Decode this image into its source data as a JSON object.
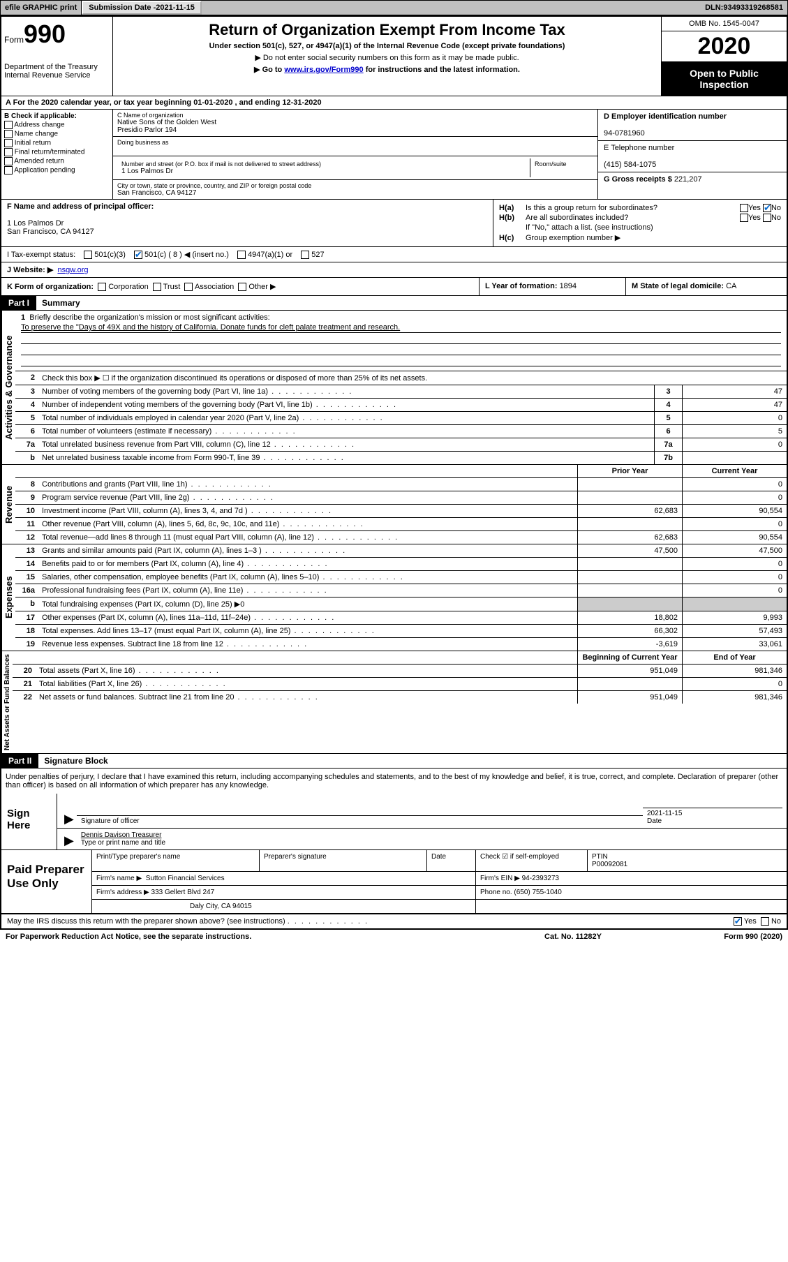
{
  "topbar": {
    "efile_label": "efile GRAPHIC print",
    "submission_label": "Submission Date - ",
    "submission_date": "2021-11-15",
    "dln_label": "DLN: ",
    "dln": "93493319268581"
  },
  "header": {
    "form_word": "Form",
    "form_number": "990",
    "dept": "Department of the Treasury\nInternal Revenue Service",
    "title": "Return of Organization Exempt From Income Tax",
    "subtitle": "Under section 501(c), 527, or 4947(a)(1) of the Internal Revenue Code (except private foundations)",
    "arrow1": "▶ Do not enter social security numbers on this form as it may be made public.",
    "arrow2_pre": "▶ Go to ",
    "arrow2_link": "www.irs.gov/Form990",
    "arrow2_post": " for instructions and the latest information.",
    "omb": "OMB No. 1545-0047",
    "year": "2020",
    "inspect": "Open to Public Inspection"
  },
  "row_a": "A For the 2020 calendar year, or tax year beginning 01-01-2020   , and ending 12-31-2020",
  "col_b": {
    "label": "B Check if applicable:",
    "opts": [
      "Address change",
      "Name change",
      "Initial return",
      "Final return/terminated",
      "Amended return",
      "Application pending"
    ]
  },
  "col_c": {
    "name_lbl": "C Name of organization",
    "name": "Native Sons of the Golden West",
    "name2": "Presidio Parlor 194",
    "dba_lbl": "Doing business as",
    "dba": "",
    "street_lbl": "Number and street (or P.O. box if mail is not delivered to street address)",
    "street": "1 Los Palmos Dr",
    "room_lbl": "Room/suite",
    "room": "",
    "city_lbl": "City or town, state or province, country, and ZIP or foreign postal code",
    "city": "San Francisco, CA  94127"
  },
  "col_d": {
    "ein_lbl": "D Employer identification number",
    "ein": "94-0781960",
    "phone_lbl": "E Telephone number",
    "phone": "(415) 584-1075",
    "gross_lbl": "G Gross receipts $ ",
    "gross": "221,207"
  },
  "f_block": {
    "label": "F Name and address of principal officer:",
    "addr1": "1 Los Palmos Dr",
    "addr2": "San Francisco, CA  94127"
  },
  "h_block": {
    "ha_lbl": "H(a)",
    "ha_txt": "Is this a group return for subordinates?",
    "ha_yes": "Yes",
    "ha_no": "No",
    "hb_lbl": "H(b)",
    "hb_txt": "Are all subordinates included?",
    "hb_note": "If \"No,\" attach a list. (see instructions)",
    "hc_lbl": "H(c)",
    "hc_txt": "Group exemption number ▶"
  },
  "i_row": {
    "label": "I  Tax-exempt status:",
    "opt1": "501(c)(3)",
    "opt2": "501(c) ( 8 ) ◀ (insert no.)",
    "opt3": "4947(a)(1) or",
    "opt4": "527"
  },
  "j_row": {
    "label": "J  Website: ▶",
    "value": "nsgw.org"
  },
  "k_row": {
    "label": "K Form of organization:",
    "opts": [
      "Corporation",
      "Trust",
      "Association",
      "Other ▶"
    ],
    "l_label": "L Year of formation: ",
    "l_val": "1894",
    "m_label": "M State of legal domicile: ",
    "m_val": "CA"
  },
  "part1": {
    "label": "Part I",
    "title": "Summary",
    "line1_num": "1",
    "line1_txt": "Briefly describe the organization's mission or most significant activities:",
    "mission": "To preserve the \"Days of 49X and the history of California. Donate funds for cleft palate treatment and research.",
    "line2_num": "2",
    "line2_txt": "Check this box ▶ ☐  if the organization discontinued its operations or disposed of more than 25% of its net assets.",
    "gov_label": "Activities & Governance",
    "rev_label": "Revenue",
    "exp_label": "Expenses",
    "net_label": "Net Assets or Fund Balances",
    "lines_gov": [
      {
        "n": "3",
        "d": "Number of voting members of the governing body (Part VI, line 1a)",
        "b": "3",
        "v": "47"
      },
      {
        "n": "4",
        "d": "Number of independent voting members of the governing body (Part VI, line 1b)",
        "b": "4",
        "v": "47"
      },
      {
        "n": "5",
        "d": "Total number of individuals employed in calendar year 2020 (Part V, line 2a)",
        "b": "5",
        "v": "0"
      },
      {
        "n": "6",
        "d": "Total number of volunteers (estimate if necessary)",
        "b": "6",
        "v": "5"
      },
      {
        "n": "7a",
        "d": "Total unrelated business revenue from Part VIII, column (C), line 12",
        "b": "7a",
        "v": "0"
      },
      {
        "n": "b",
        "d": "Net unrelated business taxable income from Form 990-T, line 39",
        "b": "7b",
        "v": ""
      }
    ],
    "hdr_prior": "Prior Year",
    "hdr_current": "Current Year",
    "lines_rev": [
      {
        "n": "8",
        "d": "Contributions and grants (Part VIII, line 1h)",
        "p": "",
        "c": "0"
      },
      {
        "n": "9",
        "d": "Program service revenue (Part VIII, line 2g)",
        "p": "",
        "c": "0"
      },
      {
        "n": "10",
        "d": "Investment income (Part VIII, column (A), lines 3, 4, and 7d )",
        "p": "62,683",
        "c": "90,554"
      },
      {
        "n": "11",
        "d": "Other revenue (Part VIII, column (A), lines 5, 6d, 8c, 9c, 10c, and 11e)",
        "p": "",
        "c": "0"
      },
      {
        "n": "12",
        "d": "Total revenue—add lines 8 through 11 (must equal Part VIII, column (A), line 12)",
        "p": "62,683",
        "c": "90,554"
      }
    ],
    "lines_exp": [
      {
        "n": "13",
        "d": "Grants and similar amounts paid (Part IX, column (A), lines 1–3 )",
        "p": "47,500",
        "c": "47,500"
      },
      {
        "n": "14",
        "d": "Benefits paid to or for members (Part IX, column (A), line 4)",
        "p": "",
        "c": "0"
      },
      {
        "n": "15",
        "d": "Salaries, other compensation, employee benefits (Part IX, column (A), lines 5–10)",
        "p": "",
        "c": "0"
      },
      {
        "n": "16a",
        "d": "Professional fundraising fees (Part IX, column (A), line 11e)",
        "p": "",
        "c": "0"
      },
      {
        "n": "b",
        "d": "Total fundraising expenses (Part IX, column (D), line 25) ▶0",
        "p": null,
        "c": null
      },
      {
        "n": "17",
        "d": "Other expenses (Part IX, column (A), lines 11a–11d, 11f–24e)",
        "p": "18,802",
        "c": "9,993"
      },
      {
        "n": "18",
        "d": "Total expenses. Add lines 13–17 (must equal Part IX, column (A), line 25)",
        "p": "66,302",
        "c": "57,493"
      },
      {
        "n": "19",
        "d": "Revenue less expenses. Subtract line 18 from line 12",
        "p": "-3,619",
        "c": "33,061"
      }
    ],
    "hdr_begin": "Beginning of Current Year",
    "hdr_end": "End of Year",
    "lines_net": [
      {
        "n": "20",
        "d": "Total assets (Part X, line 16)",
        "p": "951,049",
        "c": "981,346"
      },
      {
        "n": "21",
        "d": "Total liabilities (Part X, line 26)",
        "p": "",
        "c": "0"
      },
      {
        "n": "22",
        "d": "Net assets or fund balances. Subtract line 21 from line 20",
        "p": "951,049",
        "c": "981,346"
      }
    ]
  },
  "part2": {
    "label": "Part II",
    "title": "Signature Block",
    "penalty": "Under penalties of perjury, I declare that I have examined this return, including accompanying schedules and statements, and to the best of my knowledge and belief, it is true, correct, and complete. Declaration of preparer (other than officer) is based on all information of which preparer has any knowledge.",
    "sign_here": "Sign Here",
    "sig_officer_lbl": "Signature of officer",
    "sig_date_lbl": "Date",
    "sig_date": "2021-11-15",
    "sig_name": "Dennis Davison  Treasurer",
    "sig_name_lbl": "Type or print name and title",
    "paid_prep": "Paid Preparer Use Only",
    "prep_name_lbl": "Print/Type preparer's name",
    "prep_sig_lbl": "Preparer's signature",
    "prep_date_lbl": "Date",
    "prep_check_lbl": "Check ☑ if self-employed",
    "ptin_lbl": "PTIN",
    "ptin": "P00092081",
    "firm_name_lbl": "Firm's name   ▶",
    "firm_name": "Sutton Financial Services",
    "firm_ein_lbl": "Firm's EIN ▶",
    "firm_ein": "94-2393273",
    "firm_addr_lbl": "Firm's address ▶",
    "firm_addr1": "333 Gellert Blvd 247",
    "firm_addr2": "Daly City, CA  94015",
    "firm_phone_lbl": "Phone no. ",
    "firm_phone": "(650) 755-1040",
    "discuss": "May the IRS discuss this return with the preparer shown above? (see instructions)",
    "discuss_yes": "Yes",
    "discuss_no": "No"
  },
  "footer": {
    "left": "For Paperwork Reduction Act Notice, see the separate instructions.",
    "mid": "Cat. No. 11282Y",
    "right": "Form 990 (2020)"
  },
  "colors": {
    "link": "#0000cc",
    "black": "#000000",
    "gray_bg": "#c0c0c0"
  }
}
